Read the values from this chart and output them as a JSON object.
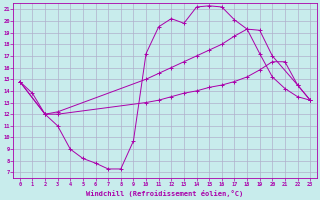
{
  "background_color": "#c8ecec",
  "grid_color": "#b0b0cc",
  "line_color": "#aa00aa",
  "marker_color": "#aa00aa",
  "xlabel": "Windchill (Refroidissement éolien,°C)",
  "xlim": [
    -0.5,
    23.5
  ],
  "ylim": [
    6.5,
    21.5
  ],
  "xticks": [
    0,
    1,
    2,
    3,
    4,
    5,
    6,
    7,
    8,
    9,
    10,
    11,
    12,
    13,
    14,
    15,
    16,
    17,
    18,
    19,
    20,
    21,
    22,
    23
  ],
  "yticks": [
    7,
    8,
    9,
    10,
    11,
    12,
    13,
    14,
    15,
    16,
    17,
    18,
    19,
    20,
    21
  ],
  "series": [
    {
      "x": [
        0,
        1,
        2,
        3,
        4,
        5,
        6,
        7,
        8,
        9,
        10,
        11,
        12,
        13,
        14,
        15,
        16,
        17,
        18,
        19,
        20,
        21,
        22,
        23
      ],
      "y": [
        14.8,
        13.8,
        12.0,
        11.0,
        9.0,
        8.2,
        7.8,
        7.3,
        7.3,
        9.7,
        17.2,
        19.5,
        20.2,
        19.8,
        21.2,
        21.3,
        21.2,
        20.1,
        19.3,
        17.2,
        15.2,
        14.2,
        13.5,
        13.2
      ]
    },
    {
      "x": [
        0,
        2,
        3,
        10,
        11,
        12,
        13,
        14,
        15,
        16,
        17,
        18,
        19,
        20,
        22,
        23
      ],
      "y": [
        14.8,
        12.0,
        12.2,
        15.0,
        15.5,
        16.0,
        16.5,
        17.0,
        17.5,
        18.0,
        18.7,
        19.3,
        19.2,
        17.0,
        14.5,
        13.2
      ]
    },
    {
      "x": [
        0,
        2,
        3,
        10,
        11,
        12,
        13,
        14,
        15,
        16,
        17,
        18,
        19,
        20,
        21,
        22,
        23
      ],
      "y": [
        14.8,
        12.0,
        12.0,
        13.0,
        13.2,
        13.5,
        13.8,
        14.0,
        14.3,
        14.5,
        14.8,
        15.2,
        15.8,
        16.5,
        16.5,
        14.5,
        13.2
      ]
    }
  ]
}
